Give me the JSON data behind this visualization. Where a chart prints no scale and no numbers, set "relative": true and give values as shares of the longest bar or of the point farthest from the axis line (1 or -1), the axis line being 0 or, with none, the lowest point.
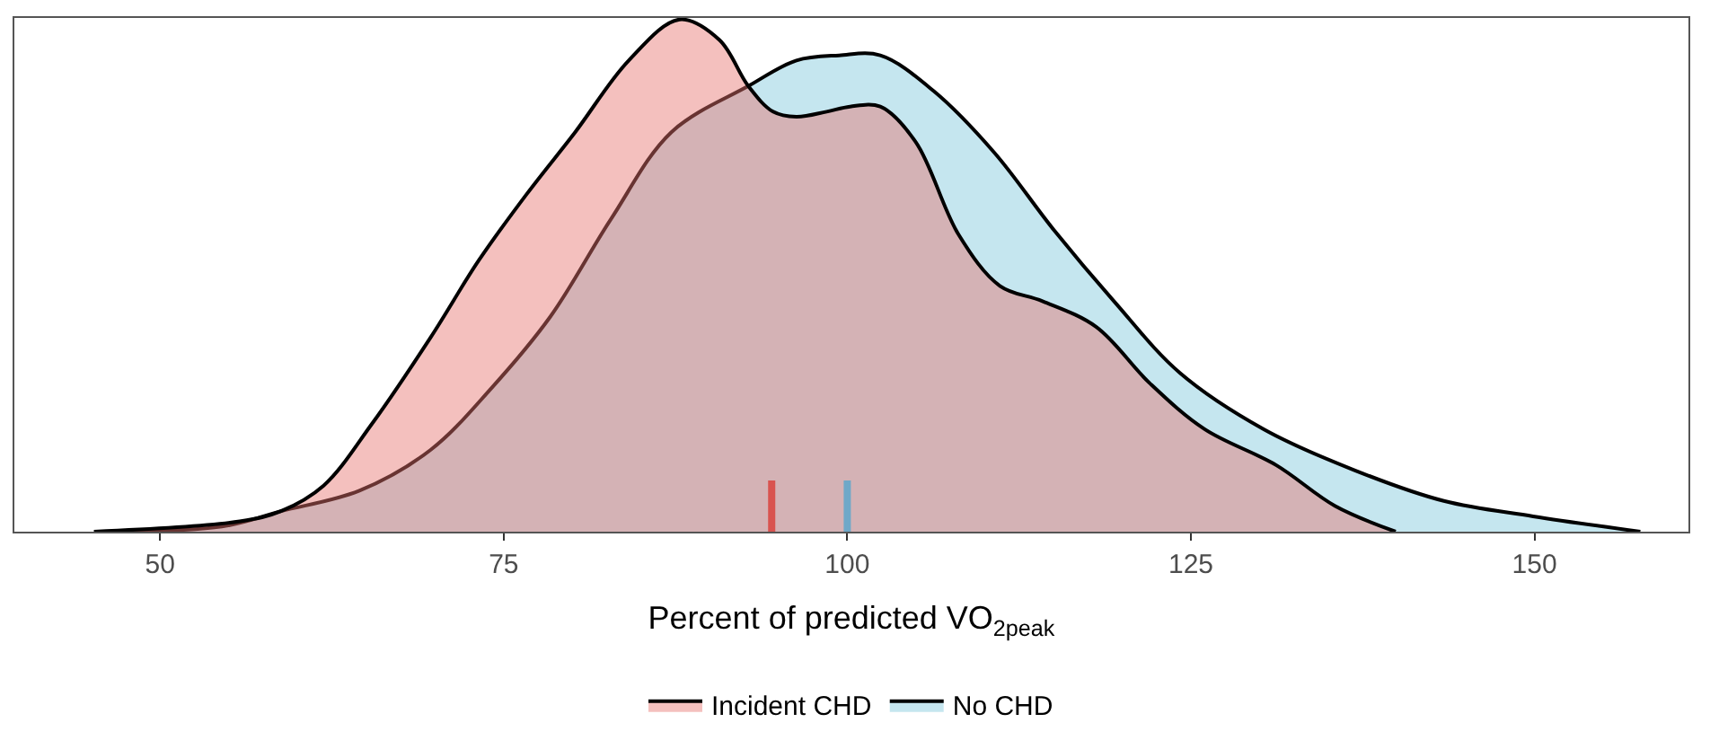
{
  "chart_data": {
    "type": "area",
    "relative": true,
    "xlabel": "Percent of predicted VO$_{2peak}$",
    "xlim": [
      39.4,
      161.2
    ],
    "xticks": [
      50,
      75,
      100,
      125,
      150
    ],
    "series": [
      {
        "name": "Incident CHD",
        "color": "#e7736f",
        "x": [
          45.2,
          55.8,
          58.8,
          61.9,
          65.4,
          69.7,
          73.2,
          76.7,
          80.2,
          84.1,
          87.8,
          90.7,
          92.8,
          94.6,
          96.3,
          98.5,
          100.2,
          102.4,
          105.0,
          108.1,
          111.1,
          114.2,
          118.1,
          122.0,
          126.0,
          131.2,
          135.5,
          139.9
        ],
        "values": [
          0,
          0.02,
          0.04,
          0.09,
          0.21,
          0.38,
          0.53,
          0.66,
          0.78,
          0.92,
          1.0,
          0.96,
          0.87,
          0.82,
          0.81,
          0.82,
          0.83,
          0.83,
          0.76,
          0.58,
          0.48,
          0.45,
          0.4,
          0.29,
          0.2,
          0.13,
          0.05,
          0
        ]
      },
      {
        "name": "No CHD",
        "color": "#7ec7db",
        "x": [
          45.2,
          54.5,
          58.8,
          64.5,
          69.7,
          74.1,
          78.4,
          82.8,
          87.2,
          92.8,
          96.3,
          99.4,
          102.4,
          106.3,
          110.7,
          115.0,
          119.4,
          124.2,
          130.3,
          136.9,
          143.4,
          149.9,
          157.7
        ],
        "values": [
          0,
          0.01,
          0.04,
          0.08,
          0.16,
          0.28,
          0.42,
          0.61,
          0.78,
          0.87,
          0.92,
          0.93,
          0.93,
          0.86,
          0.74,
          0.59,
          0.45,
          0.31,
          0.2,
          0.12,
          0.06,
          0.03,
          0
        ]
      }
    ],
    "ref_lines": [
      {
        "axis": "x",
        "value": 94.5,
        "color": "#d9534f"
      },
      {
        "axis": "x",
        "value": 100,
        "color": "#6fa8c8"
      }
    ],
    "grid": false,
    "legend": "bottom",
    "tick_labels": "x"
  }
}
